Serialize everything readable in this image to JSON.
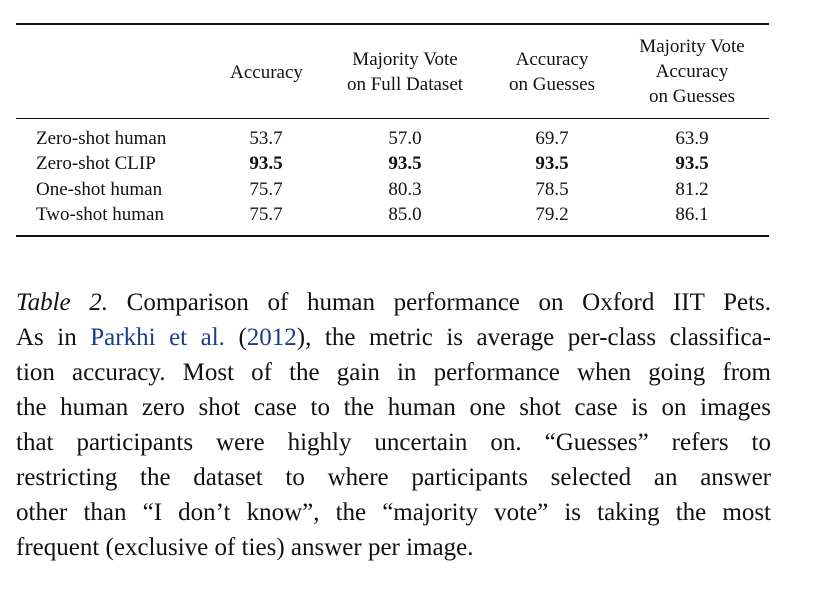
{
  "table": {
    "headers": [
      [
        "Accuracy"
      ],
      [
        "Majority Vote",
        "on Full Dataset"
      ],
      [
        "Accuracy",
        "on Guesses"
      ],
      [
        "Majority Vote",
        "Accuracy",
        "on Guesses"
      ]
    ],
    "rows": [
      {
        "label": "Zero-shot human",
        "values": [
          "53.7",
          "57.0",
          "69.7",
          "63.9"
        ],
        "bold": false
      },
      {
        "label": "Zero-shot CLIP",
        "values": [
          "93.5",
          "93.5",
          "93.5",
          "93.5"
        ],
        "bold": true
      },
      {
        "label": "One-shot human",
        "values": [
          "75.7",
          "80.3",
          "78.5",
          "81.2"
        ],
        "bold": false
      },
      {
        "label": "Two-shot human",
        "values": [
          "75.7",
          "85.0",
          "79.2",
          "86.1"
        ],
        "bold": false
      }
    ]
  },
  "caption": {
    "tag": "Table 2.",
    "line1_rest": " Comparison of human performance on Oxford IIT Pets.",
    "line2_pre": "As in ",
    "cite_authors": "Parkhi et al.",
    "cite_open": " (",
    "cite_year": "2012",
    "cite_close": ")",
    "line2_post": ", the metric is average per-class classifica-",
    "line3": "tion accuracy. Most of the gain in performance when going from",
    "line4": "the human zero shot case to the human one shot case is on images",
    "line5": "that participants were highly uncertain on.  “Guesses” refers to",
    "line6": "restricting the dataset to where participants selected an answer",
    "line7": "other than “I don’t know”, the “majority vote” is taking the most",
    "line8": "frequent (exclusive of ties) answer per image."
  }
}
